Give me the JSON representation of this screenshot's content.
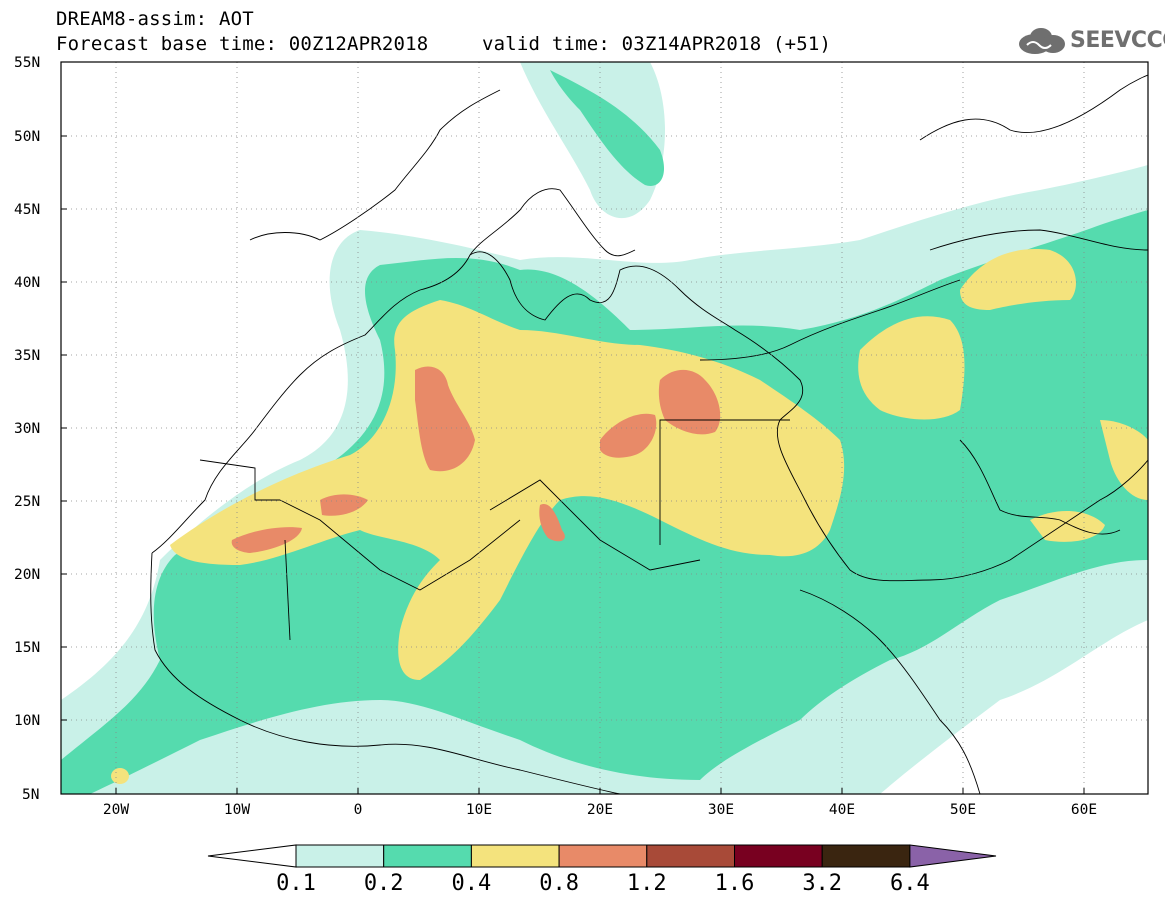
{
  "header": {
    "line1": "DREAM8-assim: AOT",
    "line2": "Forecast base time: 00Z12APR2018",
    "line3": "valid time: 03Z14APR2018 (+51)"
  },
  "logo": {
    "text": "SEEVCCC",
    "icon": "cloud-icon",
    "color": "#6f6f6f"
  },
  "map": {
    "projection": "lat-lon",
    "lon_range": [
      -25,
      65
    ],
    "lat_range": [
      5,
      55
    ],
    "grid": "dotted",
    "lat_ticks": [
      "55N",
      "50N",
      "45N",
      "40N",
      "35N",
      "30N",
      "25N",
      "20N",
      "15N",
      "10N",
      "5N"
    ],
    "lon_ticks": [
      "20W",
      "10W",
      "0",
      "10E",
      "20E",
      "30E",
      "40E",
      "50E",
      "60E"
    ]
  },
  "colorbar": {
    "levels": [
      "0.1",
      "0.2",
      "0.4",
      "0.8",
      "1.2",
      "1.6",
      "3.2",
      "6.4"
    ],
    "colors": [
      "#c9f1e8",
      "#55dbae",
      "#f4e37d",
      "#e88a68",
      "#a84a38",
      "#780020",
      "#3a2510",
      "#8a62a8"
    ],
    "extend_low_color": "#ffffff"
  }
}
